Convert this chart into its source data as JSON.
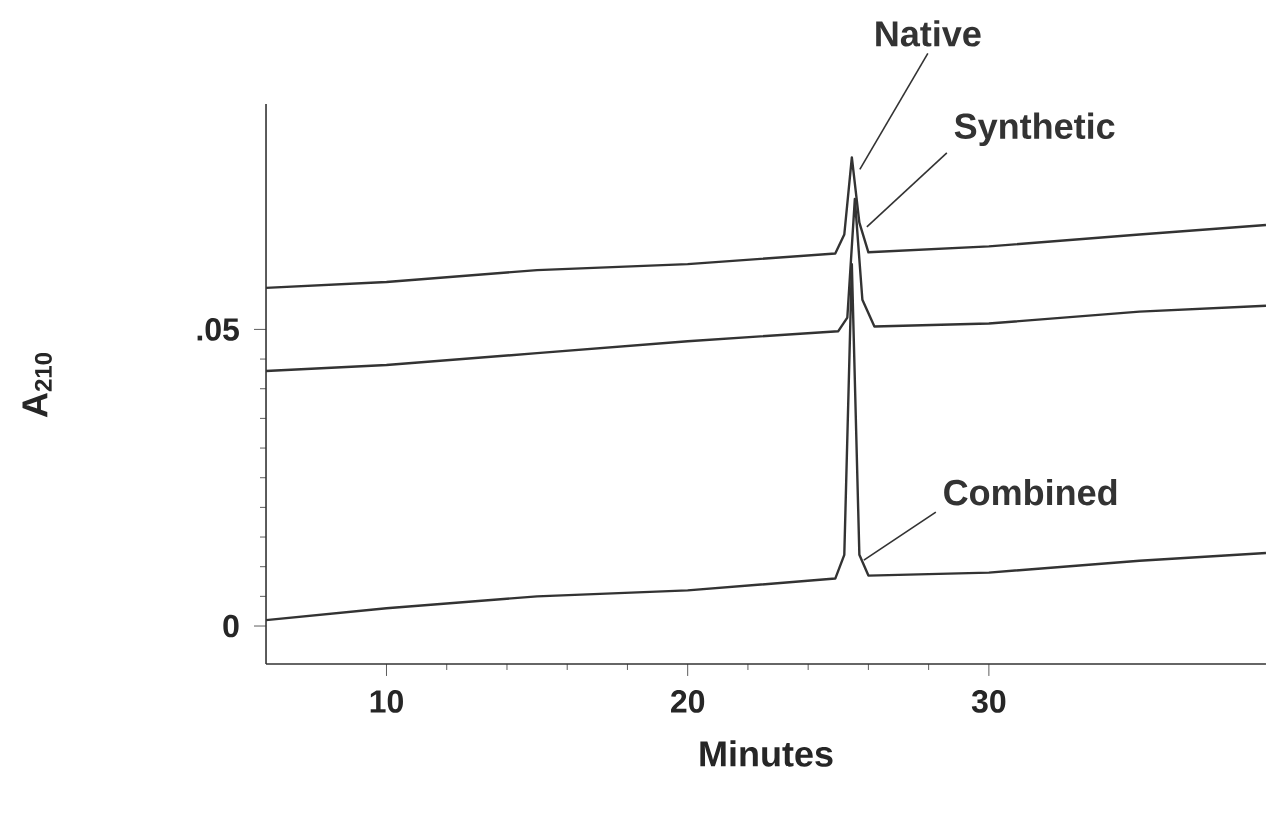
{
  "chart_data": {
    "type": "line",
    "xlabel": "Minutes",
    "ylabel": "A$_{210}$",
    "xlim": [
      6,
      39.2
    ],
    "ylim": [
      -0.0064,
      0.088
    ],
    "xticks": [
      10,
      20,
      30
    ],
    "yticks": [
      0,
      {
        "value": 0.05,
        "label": ".05"
      }
    ],
    "grid": false,
    "marker": "none",
    "line_style": "solid",
    "x": [
      6,
      10,
      15,
      20,
      24.9,
      25.2,
      25.45,
      25.7,
      26.0,
      30,
      35,
      39.2
    ],
    "series": [
      {
        "name": "Native",
        "color": "#333333",
        "values": [
          0.057,
          0.058,
          0.06,
          0.061,
          0.0628,
          0.066,
          0.079,
          0.068,
          0.063,
          0.064,
          0.066,
          0.0676
        ]
      },
      {
        "name": "Synthetic",
        "color": "#333333",
        "x": [
          6,
          10,
          15,
          20,
          25.0,
          25.3,
          25.55,
          25.8,
          26.2,
          30,
          35,
          39.2
        ],
        "values": [
          0.043,
          0.044,
          0.046,
          0.048,
          0.0497,
          0.052,
          0.072,
          0.055,
          0.0505,
          0.051,
          0.053,
          0.054
        ]
      },
      {
        "name": "Combined",
        "color": "#333333",
        "values": [
          0.001,
          0.003,
          0.005,
          0.006,
          0.008,
          0.012,
          0.061,
          0.012,
          0.0085,
          0.009,
          0.011,
          0.0123
        ]
      }
    ]
  }
}
